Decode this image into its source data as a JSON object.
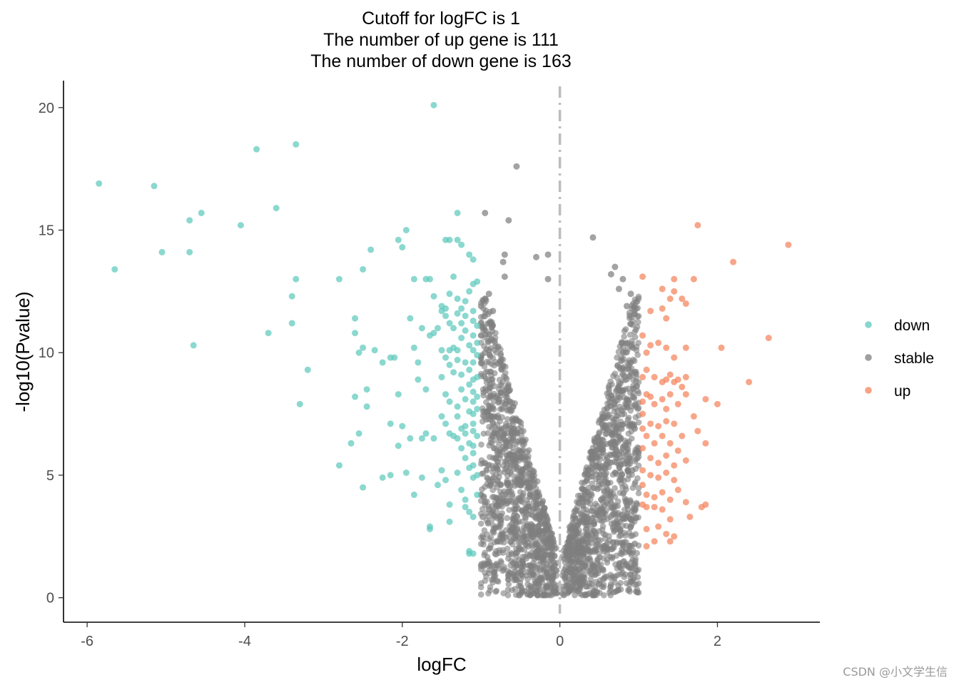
{
  "chart_data": {
    "type": "scatter",
    "title_lines": [
      "Cutoff for logFC is 1",
      "The number of up gene is 111",
      "The number of down gene is 163"
    ],
    "xlabel": "logFC",
    "ylabel": "-log10(Pvalue)",
    "xlim": [
      -6.3,
      3.3
    ],
    "ylim": [
      -1,
      21.1
    ],
    "x_ticks": [
      -6,
      -4,
      -2,
      0,
      2
    ],
    "y_ticks": [
      0,
      5,
      10,
      15,
      20
    ],
    "grid": false,
    "legend_position": "right",
    "vline": {
      "x": 0,
      "style": "dashed",
      "color": "#bdbdbd"
    },
    "series": [
      {
        "name": "down",
        "color": "#5ec9bd",
        "points": [
          [
            -5.85,
            16.9
          ],
          [
            -5.65,
            13.4
          ],
          [
            -5.15,
            16.8
          ],
          [
            -5.05,
            14.1
          ],
          [
            -4.7,
            15.4
          ],
          [
            -4.7,
            14.1
          ],
          [
            -4.55,
            15.7
          ],
          [
            -4.65,
            10.3
          ],
          [
            -4.05,
            15.2
          ],
          [
            -3.85,
            18.3
          ],
          [
            -3.6,
            15.9
          ],
          [
            -3.7,
            10.8
          ],
          [
            -3.35,
            18.5
          ],
          [
            -3.35,
            13.0
          ],
          [
            -3.4,
            12.3
          ],
          [
            -3.4,
            11.2
          ],
          [
            -3.3,
            7.9
          ],
          [
            -3.2,
            9.3
          ],
          [
            -2.8,
            13.0
          ],
          [
            -2.8,
            5.4
          ],
          [
            -2.65,
            6.3
          ],
          [
            -2.6,
            11.4
          ],
          [
            -2.6,
            10.8
          ],
          [
            -2.6,
            8.2
          ],
          [
            -2.55,
            10.0
          ],
          [
            -2.55,
            6.7
          ],
          [
            -2.5,
            13.4
          ],
          [
            -2.5,
            10.2
          ],
          [
            -2.5,
            4.5
          ],
          [
            -2.45,
            8.5
          ],
          [
            -2.45,
            7.8
          ],
          [
            -2.4,
            14.2
          ],
          [
            -2.35,
            10.1
          ],
          [
            -2.25,
            9.6
          ],
          [
            -2.25,
            4.9
          ],
          [
            -2.15,
            9.8
          ],
          [
            -2.15,
            7.1
          ],
          [
            -2.15,
            5.0
          ],
          [
            -2.1,
            9.8
          ],
          [
            -2.05,
            14.6
          ],
          [
            -2.05,
            8.3
          ],
          [
            -2.05,
            6.2
          ],
          [
            -2.0,
            14.3
          ],
          [
            -2.0,
            7.0
          ],
          [
            -1.95,
            15.0
          ],
          [
            -1.95,
            5.1
          ],
          [
            -1.9,
            11.4
          ],
          [
            -1.9,
            6.5
          ],
          [
            -1.85,
            4.2
          ],
          [
            -1.85,
            13.0
          ],
          [
            -1.85,
            10.2
          ],
          [
            -1.8,
            8.9
          ],
          [
            -1.8,
            9.6
          ],
          [
            -1.75,
            11.0
          ],
          [
            -1.75,
            6.5
          ],
          [
            -1.75,
            4.9
          ],
          [
            -1.7,
            13.0
          ],
          [
            -1.7,
            8.5
          ],
          [
            -1.7,
            6.7
          ],
          [
            -1.65,
            13.0
          ],
          [
            -1.65,
            10.7
          ],
          [
            -1.65,
            2.9
          ],
          [
            -1.65,
            2.8
          ],
          [
            -1.6,
            20.1
          ],
          [
            -1.6,
            12.3
          ],
          [
            -1.6,
            10.8
          ],
          [
            -1.6,
            6.5
          ],
          [
            -1.55,
            11.0
          ],
          [
            -1.55,
            4.6
          ],
          [
            -1.5,
            11.9
          ],
          [
            -1.5,
            11.7
          ],
          [
            -1.5,
            10.1
          ],
          [
            -1.5,
            9.0
          ],
          [
            -1.5,
            7.4
          ],
          [
            -1.5,
            5.2
          ],
          [
            -1.45,
            14.6
          ],
          [
            -1.45,
            11.8
          ],
          [
            -1.45,
            11.5
          ],
          [
            -1.45,
            9.8
          ],
          [
            -1.45,
            8.3
          ],
          [
            -1.45,
            7.1
          ],
          [
            -1.45,
            4.8
          ],
          [
            -1.4,
            14.6
          ],
          [
            -1.4,
            12.4
          ],
          [
            -1.4,
            11.2
          ],
          [
            -1.4,
            10.1
          ],
          [
            -1.4,
            9.5
          ],
          [
            -1.4,
            8.0
          ],
          [
            -1.4,
            6.7
          ],
          [
            -1.4,
            3.8
          ],
          [
            -1.4,
            3.1
          ],
          [
            -1.35,
            13.1
          ],
          [
            -1.35,
            11.0
          ],
          [
            -1.35,
            10.2
          ],
          [
            -1.35,
            9.2
          ],
          [
            -1.35,
            6.6
          ],
          [
            -1.3,
            15.7
          ],
          [
            -1.3,
            14.6
          ],
          [
            -1.3,
            12.2
          ],
          [
            -1.3,
            11.6
          ],
          [
            -1.3,
            10.1
          ],
          [
            -1.3,
            9.7
          ],
          [
            -1.3,
            7.8
          ],
          [
            -1.3,
            7.4
          ],
          [
            -1.3,
            6.5
          ],
          [
            -1.3,
            5.1
          ],
          [
            -1.25,
            14.4
          ],
          [
            -1.25,
            11.8
          ],
          [
            -1.25,
            11.2
          ],
          [
            -1.25,
            10.6
          ],
          [
            -1.25,
            9.1
          ],
          [
            -1.25,
            8.5
          ],
          [
            -1.25,
            6.9
          ],
          [
            -1.25,
            6.1
          ],
          [
            -1.25,
            4.4
          ],
          [
            -1.2,
            12.1
          ],
          [
            -1.2,
            11.5
          ],
          [
            -1.2,
            10.9
          ],
          [
            -1.2,
            9.6
          ],
          [
            -1.2,
            8.1
          ],
          [
            -1.2,
            7.0
          ],
          [
            -1.2,
            6.7
          ],
          [
            -1.2,
            5.7
          ],
          [
            -1.2,
            4.0
          ],
          [
            -1.2,
            3.7
          ],
          [
            -1.15,
            14.0
          ],
          [
            -1.15,
            12.5
          ],
          [
            -1.15,
            10.3
          ],
          [
            -1.15,
            9.3
          ],
          [
            -1.15,
            8.7
          ],
          [
            -1.15,
            7.6
          ],
          [
            -1.15,
            6.3
          ],
          [
            -1.15,
            5.3
          ],
          [
            -1.15,
            3.5
          ],
          [
            -1.15,
            1.9
          ],
          [
            -1.15,
            1.8
          ],
          [
            -1.1,
            13.8
          ],
          [
            -1.1,
            12.8
          ],
          [
            -1.1,
            11.7
          ],
          [
            -1.1,
            11.3
          ],
          [
            -1.1,
            10.7
          ],
          [
            -1.1,
            10.1
          ],
          [
            -1.1,
            9.6
          ],
          [
            -1.1,
            8.9
          ],
          [
            -1.1,
            8.4
          ],
          [
            -1.1,
            8.0
          ],
          [
            -1.1,
            7.5
          ],
          [
            -1.1,
            7.1
          ],
          [
            -1.1,
            6.8
          ],
          [
            -1.1,
            6.2
          ],
          [
            -1.1,
            5.9
          ],
          [
            -1.1,
            5.4
          ],
          [
            -1.1,
            4.9
          ],
          [
            -1.1,
            3.3
          ],
          [
            -1.1,
            1.8
          ],
          [
            -1.05,
            12.9
          ],
          [
            -1.05,
            11.1
          ],
          [
            -1.05,
            10.4
          ],
          [
            -1.05,
            9.9
          ],
          [
            -1.05,
            9.0
          ],
          [
            -1.05,
            8.2
          ],
          [
            -1.05,
            7.7
          ],
          [
            -1.05,
            6.6
          ],
          [
            -1.05,
            5.0
          ],
          [
            -1.05,
            4.2
          ]
        ]
      },
      {
        "name": "stable",
        "color": "#7f7f7f",
        "points": [
          [
            -0.55,
            17.6
          ],
          [
            -0.95,
            15.7
          ],
          [
            -0.65,
            15.4
          ],
          [
            0.42,
            14.7
          ],
          [
            -0.7,
            14.0
          ],
          [
            -0.72,
            13.7
          ],
          [
            -0.7,
            13.1
          ],
          [
            -0.3,
            13.9
          ],
          [
            -0.15,
            14.0
          ],
          [
            -0.15,
            13.0
          ],
          [
            0.7,
            13.5
          ],
          [
            0.8,
            13.0
          ],
          [
            0.65,
            13.2
          ],
          [
            0.75,
            12.6
          ],
          [
            0.9,
            12.4
          ],
          [
            -0.9,
            12.4
          ],
          [
            -0.95,
            12.2
          ],
          [
            0.85,
            11.9
          ],
          [
            -1.0,
            11.9
          ],
          [
            -0.85,
            11.7
          ],
          [
            0.95,
            11.6
          ],
          [
            -0.9,
            10.1
          ],
          [
            -0.95,
            10.0
          ],
          [
            0.95,
            9.2
          ],
          [
            -0.95,
            3.9
          ],
          [
            -0.9,
            3.6
          ],
          [
            -0.98,
            3.3
          ],
          [
            0.95,
            3.6
          ],
          [
            0.9,
            3.2
          ],
          [
            0.98,
            3.8
          ],
          [
            -0.85,
            2.7
          ],
          [
            -0.9,
            2.0
          ],
          [
            0.95,
            2.2
          ],
          [
            0.9,
            2.9
          ],
          [
            -1.0,
            1.3
          ],
          [
            0.95,
            1.0
          ],
          [
            -0.95,
            5.5
          ],
          [
            0.92,
            5.2
          ],
          [
            0.95,
            6.9
          ],
          [
            -0.97,
            7.6
          ]
        ]
      },
      {
        "name": "up",
        "color": "#f4835b",
        "points": [
          [
            1.75,
            15.2
          ],
          [
            2.9,
            14.4
          ],
          [
            2.2,
            13.7
          ],
          [
            1.05,
            13.1
          ],
          [
            1.3,
            12.6
          ],
          [
            1.4,
            12.2
          ],
          [
            1.45,
            13.0
          ],
          [
            1.45,
            12.5
          ],
          [
            1.55,
            12.2
          ],
          [
            1.6,
            12.0
          ],
          [
            1.7,
            13.0
          ],
          [
            1.15,
            11.7
          ],
          [
            1.3,
            11.8
          ],
          [
            1.35,
            11.4
          ],
          [
            1.05,
            10.7
          ],
          [
            1.1,
            10.0
          ],
          [
            1.15,
            10.3
          ],
          [
            1.25,
            10.4
          ],
          [
            1.35,
            10.2
          ],
          [
            1.45,
            9.8
          ],
          [
            1.6,
            10.2
          ],
          [
            2.05,
            10.2
          ],
          [
            2.65,
            10.6
          ],
          [
            2.4,
            8.8
          ],
          [
            1.05,
            9.0
          ],
          [
            1.1,
            9.3
          ],
          [
            1.2,
            9.0
          ],
          [
            1.3,
            8.8
          ],
          [
            1.35,
            8.9
          ],
          [
            1.4,
            9.1
          ],
          [
            1.45,
            8.8
          ],
          [
            1.5,
            8.9
          ],
          [
            1.55,
            8.6
          ],
          [
            1.6,
            9.0
          ],
          [
            1.05,
            8.0
          ],
          [
            1.1,
            8.3
          ],
          [
            1.15,
            8.2
          ],
          [
            1.2,
            7.9
          ],
          [
            1.3,
            8.1
          ],
          [
            1.35,
            7.7
          ],
          [
            1.4,
            8.3
          ],
          [
            1.5,
            7.9
          ],
          [
            1.6,
            8.3
          ],
          [
            1.85,
            8.1
          ],
          [
            2.0,
            7.9
          ],
          [
            1.05,
            7.5
          ],
          [
            1.15,
            7.1
          ],
          [
            1.25,
            7.0
          ],
          [
            1.35,
            7.2
          ],
          [
            1.45,
            7.1
          ],
          [
            1.7,
            7.4
          ],
          [
            1.75,
            6.8
          ],
          [
            1.05,
            6.9
          ],
          [
            1.1,
            6.6
          ],
          [
            1.2,
            6.3
          ],
          [
            1.3,
            6.6
          ],
          [
            1.4,
            6.3
          ],
          [
            1.5,
            6.0
          ],
          [
            1.55,
            6.6
          ],
          [
            1.85,
            6.3
          ],
          [
            1.05,
            6.1
          ],
          [
            1.15,
            5.7
          ],
          [
            1.25,
            5.5
          ],
          [
            1.35,
            5.8
          ],
          [
            1.45,
            5.4
          ],
          [
            1.6,
            5.6
          ],
          [
            1.05,
            5.2
          ],
          [
            1.15,
            5.0
          ],
          [
            1.25,
            4.9
          ],
          [
            1.35,
            5.1
          ],
          [
            1.45,
            4.8
          ],
          [
            1.5,
            4.4
          ],
          [
            1.05,
            4.6
          ],
          [
            1.1,
            4.2
          ],
          [
            1.2,
            4.1
          ],
          [
            1.3,
            4.3
          ],
          [
            1.4,
            4.0
          ],
          [
            1.6,
            3.9
          ],
          [
            1.05,
            3.8
          ],
          [
            1.1,
            3.7
          ],
          [
            1.2,
            3.7
          ],
          [
            1.3,
            3.6
          ],
          [
            1.4,
            3.2
          ],
          [
            1.65,
            3.3
          ],
          [
            1.8,
            3.7
          ],
          [
            1.85,
            3.8
          ],
          [
            1.1,
            2.8
          ],
          [
            1.25,
            2.9
          ],
          [
            1.35,
            2.6
          ],
          [
            1.45,
            2.5
          ],
          [
            1.1,
            2.1
          ],
          [
            1.2,
            2.3
          ],
          [
            1.4,
            2.3
          ]
        ]
      }
    ],
    "background_cloud": {
      "series": "stable",
      "shape": "V-shaped dense cloud centred at logFC 0",
      "x_range": [
        -1,
        1
      ],
      "y_range": [
        0,
        12.5
      ]
    }
  },
  "watermark": "CSDN @小文学生信"
}
